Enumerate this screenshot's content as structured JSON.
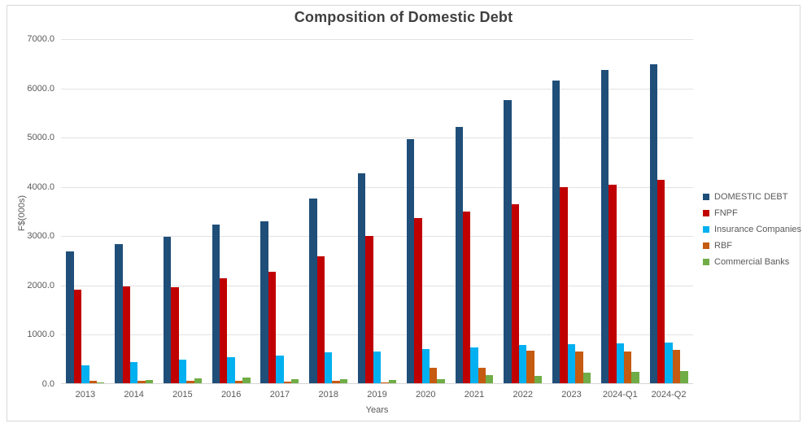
{
  "title": "Composition of Domestic Debt",
  "chart_data": {
    "type": "bar",
    "title": "Composition of Domestic Debt",
    "xlabel": "Years",
    "ylabel": "F$(000s)",
    "ylim": [
      0,
      7000
    ],
    "ytick_interval": 1000,
    "ytick_labels": [
      "7000.0",
      "6000.0",
      "5000.0",
      "4000.0",
      "3000.0",
      "2000.0",
      "1000.0",
      "0.0"
    ],
    "grid": true,
    "legend_position": "right",
    "categories": [
      "2013",
      "2014",
      "2015",
      "2016",
      "2017",
      "2018",
      "2019",
      "2020",
      "2021",
      "2022",
      "2023",
      "2024-Q1",
      "2024-Q2"
    ],
    "series": [
      {
        "name": "DOMESTIC DEBT",
        "color": "#1F4E79",
        "values": [
          2700,
          2835,
          2990,
          3230,
          3300,
          3765,
          4280,
          4975,
          5225,
          5765,
          6160,
          6370,
          6490
        ]
      },
      {
        "name": "FNPF",
        "color": "#C00000",
        "values": [
          1910,
          1975,
          1960,
          2155,
          2280,
          2600,
          3010,
          3370,
          3505,
          3655,
          4000,
          4040,
          4140
        ]
      },
      {
        "name": "Insurance Companies",
        "color": "#00B0F0",
        "values": [
          380,
          450,
          490,
          540,
          585,
          640,
          660,
          705,
          750,
          790,
          815,
          830,
          845
        ]
      },
      {
        "name": "RBF",
        "color": "#C55A11",
        "values": [
          75,
          70,
          60,
          65,
          55,
          60,
          35,
          335,
          330,
          680,
          655,
          655,
          695
        ]
      },
      {
        "name": "Commercial Banks",
        "color": "#70AD47",
        "values": [
          30,
          85,
          115,
          125,
          100,
          100,
          90,
          95,
          185,
          170,
          235,
          255,
          265
        ]
      }
    ]
  }
}
